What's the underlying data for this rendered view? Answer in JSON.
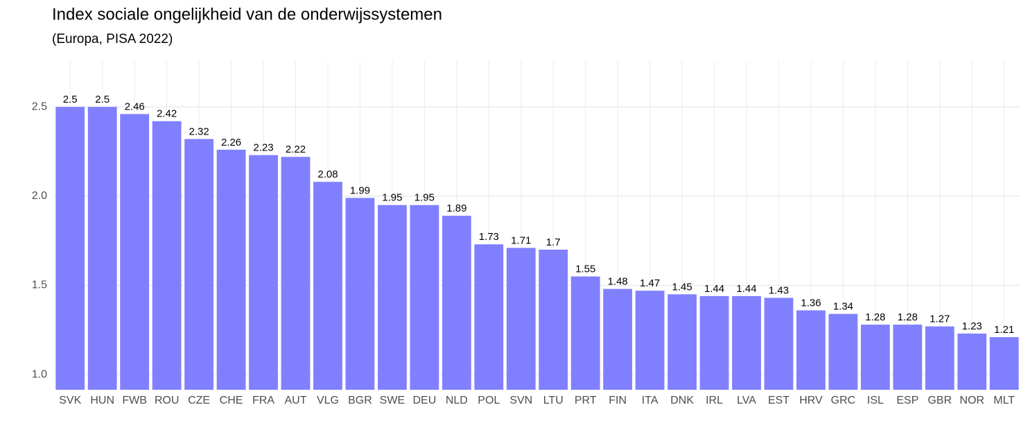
{
  "chart_data": {
    "type": "bar",
    "title": "Index sociale ongelijkheid van de onderwijssystemen",
    "subtitle": "(Europa, PISA 2022)",
    "categories": [
      "SVK",
      "HUN",
      "FWB",
      "ROU",
      "CZE",
      "CHE",
      "FRA",
      "AUT",
      "VLG",
      "BGR",
      "SWE",
      "DEU",
      "NLD",
      "POL",
      "SVN",
      "LTU",
      "PRT",
      "FIN",
      "ITA",
      "DNK",
      "IRL",
      "LVA",
      "EST",
      "HRV",
      "GRC",
      "ISL",
      "ESP",
      "GBR",
      "NOR",
      "MLT"
    ],
    "values": [
      2.5,
      2.5,
      2.46,
      2.42,
      2.32,
      2.26,
      2.23,
      2.22,
      2.08,
      1.99,
      1.95,
      1.95,
      1.89,
      1.73,
      1.71,
      1.7,
      1.55,
      1.48,
      1.47,
      1.45,
      1.44,
      1.44,
      1.43,
      1.36,
      1.34,
      1.28,
      1.28,
      1.27,
      1.23,
      1.21
    ],
    "color": "#8080ff",
    "ylim": [
      0.915,
      2.757
    ],
    "yticks": [
      {
        "value": 1.0,
        "label": "1.0"
      },
      1.5,
      {
        "value": 2.0,
        "label": "2.0"
      },
      2.5
    ],
    "grid": true
  }
}
